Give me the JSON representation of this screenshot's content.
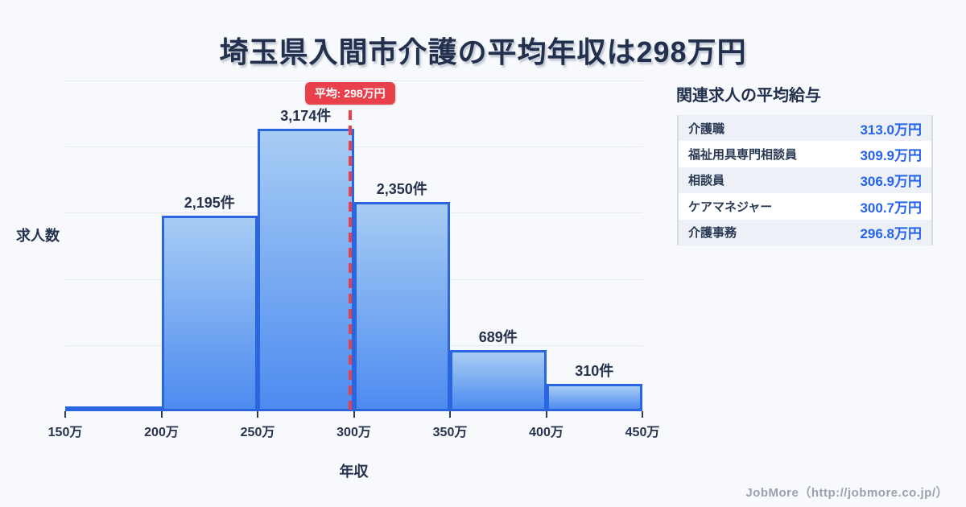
{
  "title": "埼玉県入間市介護の平均年収は298万円",
  "chart_data": {
    "type": "bar",
    "subtype": "histogram",
    "title": "埼玉県入間市介護の平均年収は298万円",
    "xlabel": "年収",
    "ylabel": "求人数",
    "x_tick_labels": [
      "150万",
      "200万",
      "250万",
      "300万",
      "350万",
      "400万",
      "450万"
    ],
    "x_range_man_yen": [
      150,
      450
    ],
    "values": [
      null,
      2195,
      3174,
      2350,
      689,
      310
    ],
    "bar_labels": [
      "",
      "2,195件",
      "3,174件",
      "2,350件",
      "689件",
      "310件"
    ],
    "average_line": {
      "label": "平均: 298万円",
      "value_man_yen": 298
    },
    "grid": "horizontal",
    "gridline_count": 5,
    "legend": "none"
  },
  "related_jobs": {
    "heading": "関連求人の平均給与",
    "rows": [
      {
        "label": "介護職",
        "value": "313.0万円"
      },
      {
        "label": "福祉用具専門相談員",
        "value": "309.9万円"
      },
      {
        "label": "相談員",
        "value": "306.9万円"
      },
      {
        "label": "ケアマネジャー",
        "value": "300.7万円"
      },
      {
        "label": "介護事務",
        "value": "296.8万円"
      }
    ]
  },
  "footer": {
    "credit": "JobMore（http://jobmore.co.jp/）"
  },
  "colors": {
    "background": "#f7f9fc",
    "title_text": "#22304e",
    "navy_text": "#26334e",
    "bar_border": "#2a66e0",
    "bar_gradient_top": "#a8cdf4",
    "bar_gradient_bottom": "#4d8bf0",
    "average_red": "#e8414c",
    "value_blue": "#2563eb",
    "table_stripe": "#edf1f7",
    "gridline": "#e7ebf1",
    "footer_gray": "#9aa1ab",
    "tick_color": "#2c3a52",
    "table_border": "#d6dce6"
  }
}
